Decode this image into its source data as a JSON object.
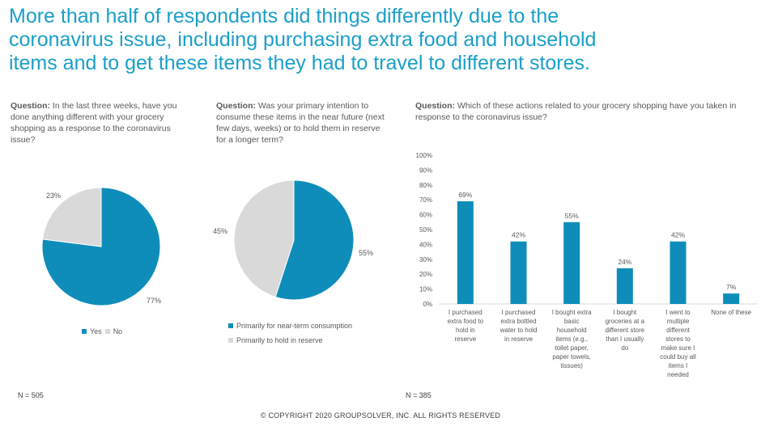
{
  "title": "More than half of respondents did things differently due to the\ncoronavirus issue, including purchasing extra food and household\nitems and to get these items they had to travel to different stores.",
  "colors": {
    "primary": "#0e8dba",
    "secondary": "#d9d9d9",
    "title": "#1a9fc9"
  },
  "question_label": "Question:",
  "panel1": {
    "question": "In the last three weeks, have you done anything different with your grocery shopping as a response to the coronavirus issue?",
    "n": "N = 505"
  },
  "panel2": {
    "question": "Was your primary intention to consume these items in the near future (next few days, weeks) or to hold them in reserve for a longer term?"
  },
  "panel3": {
    "question": "Which of these actions related to your grocery shopping have you taken in response to the coronavirus issue?",
    "n": "N = 385"
  },
  "chart_data": [
    {
      "type": "pie",
      "labels": [
        "Yes",
        "No"
      ],
      "values": [
        77,
        23
      ],
      "value_labels": [
        "77%",
        "23%"
      ],
      "legend": "bottom"
    },
    {
      "type": "pie",
      "labels": [
        "Primarily for near-term consumption",
        "Primarily to hold in reserve"
      ],
      "values": [
        55,
        45
      ],
      "value_labels": [
        "55%",
        "45%"
      ],
      "legend": "bottom"
    },
    {
      "type": "bar",
      "categories": [
        [
          "I purchased",
          "extra food to",
          "hold in",
          "reserve"
        ],
        [
          "I purchased",
          "extra bottled",
          "water to hold",
          "in reserve"
        ],
        [
          "I bought extra",
          "basic",
          "household",
          "items (e.g.,",
          "toilet paper,",
          "paper towels,",
          "tissues)"
        ],
        [
          "I bought",
          "groceries at a",
          "different store",
          "than I usually",
          "do"
        ],
        [
          "I went to",
          "multiple",
          "different",
          "stores to",
          "make sure I",
          "could buy all",
          "items I",
          "needed"
        ],
        [
          "None of these"
        ]
      ],
      "values": [
        69,
        42,
        55,
        24,
        42,
        7
      ],
      "value_labels": [
        "69%",
        "42%",
        "55%",
        "24%",
        "42%",
        "7%"
      ],
      "yticks": [
        "0%",
        "10%",
        "20%",
        "30%",
        "40%",
        "50%",
        "60%",
        "70%",
        "80%",
        "90%",
        "100%"
      ],
      "ylim": [
        0,
        100
      ]
    }
  ],
  "footer": "© COPYRIGHT 2020 GROUPSOLVER, INC. ALL RIGHTS RESERVED"
}
